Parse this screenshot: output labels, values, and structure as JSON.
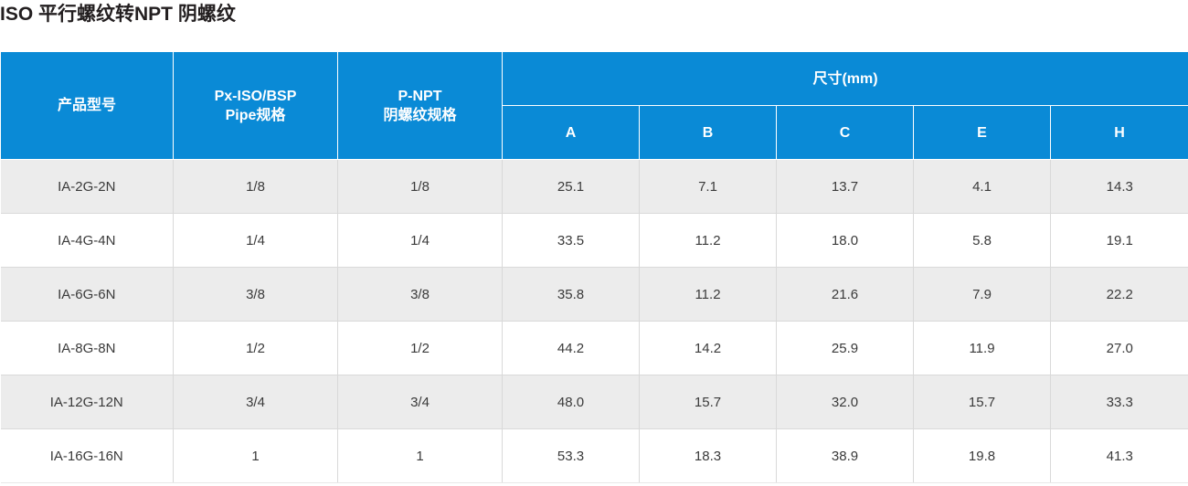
{
  "title": "ISO 平行螺纹转NPT 阴螺纹",
  "colors": {
    "header_bg": "#0a8ad6",
    "header_text": "#ffffff",
    "row_alt_bg": "#ececec",
    "row_bg": "#ffffff",
    "cell_text": "#3a3a3a"
  },
  "table": {
    "headers": {
      "model": "产品型号",
      "px_iso_line1": "Px-ISO/BSP",
      "px_iso_line2": "Pipe规格",
      "pnpt_line1": "P-NPT",
      "pnpt_line2": "阴螺纹规格",
      "dimensions": "尺寸(mm)",
      "dims": [
        "A",
        "B",
        "C",
        "E",
        "H"
      ]
    },
    "rows": [
      {
        "model": "IA-2G-2N",
        "px": "1/8",
        "pnpt": "1/8",
        "A": "25.1",
        "B": "7.1",
        "C": "13.7",
        "E": "4.1",
        "H": "14.3"
      },
      {
        "model": "IA-4G-4N",
        "px": "1/4",
        "pnpt": "1/4",
        "A": "33.5",
        "B": "11.2",
        "C": "18.0",
        "E": "5.8",
        "H": "19.1"
      },
      {
        "model": "IA-6G-6N",
        "px": "3/8",
        "pnpt": "3/8",
        "A": "35.8",
        "B": "11.2",
        "C": "21.6",
        "E": "7.9",
        "H": "22.2"
      },
      {
        "model": "IA-8G-8N",
        "px": "1/2",
        "pnpt": "1/2",
        "A": "44.2",
        "B": "14.2",
        "C": "25.9",
        "E": "11.9",
        "H": "27.0"
      },
      {
        "model": "IA-12G-12N",
        "px": "3/4",
        "pnpt": "3/4",
        "A": "48.0",
        "B": "15.7",
        "C": "32.0",
        "E": "15.7",
        "H": "33.3"
      },
      {
        "model": "IA-16G-16N",
        "px": "1",
        "pnpt": "1",
        "A": "53.3",
        "B": "18.3",
        "C": "38.9",
        "E": "19.8",
        "H": "41.3"
      }
    ]
  }
}
